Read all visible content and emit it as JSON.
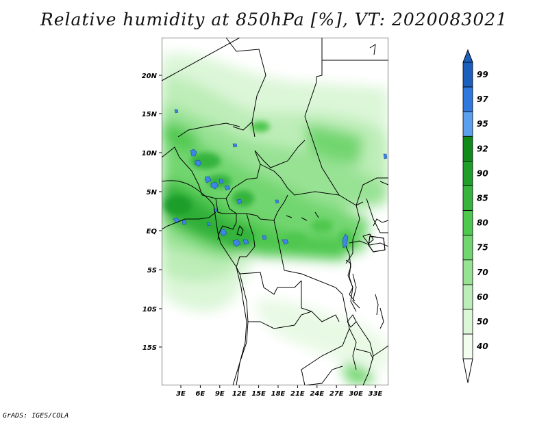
{
  "title": "Relative humidity at 850hPa [%], VT: 2020083021",
  "credit": "GrADS: IGES/COLA",
  "map": {
    "lat_labels": [
      "20N",
      "15N",
      "10N",
      "5N",
      "EQ",
      "5S",
      "10S",
      "15S"
    ],
    "lon_labels": [
      "3E",
      "6E",
      "9E",
      "12E",
      "15E",
      "18E",
      "21E",
      "24E",
      "27E",
      "30E",
      "33E"
    ]
  },
  "colorbar": {
    "levels": [
      "99",
      "97",
      "95",
      "92",
      "90",
      "85",
      "80",
      "75",
      "70",
      "60",
      "50",
      "40"
    ],
    "colors": [
      "#1c5fbd",
      "#2f78de",
      "#5aa0ee",
      "#108a1a",
      "#1f9e2a",
      "#36b43e",
      "#4fc850",
      "#72d670",
      "#98e294",
      "#bdedb8",
      "#dcf6d8",
      "#f2fcef",
      "#ffffff"
    ],
    "top_color": "#1c5fbd"
  }
}
